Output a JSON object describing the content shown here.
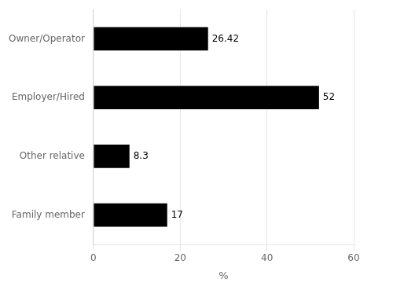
{
  "chart_data": {
    "type": "bar",
    "orientation": "horizontal",
    "categories": [
      "Family member",
      "Other relative",
      "Employer/Hired",
      "Owner/Operator"
    ],
    "values": [
      17,
      8.3,
      52,
      26.42
    ],
    "color": "#000000",
    "xlabel": "%",
    "xlim": [
      0,
      60
    ],
    "xticks": [
      0,
      20,
      40,
      60
    ],
    "grid": true,
    "data_labels": true
  }
}
